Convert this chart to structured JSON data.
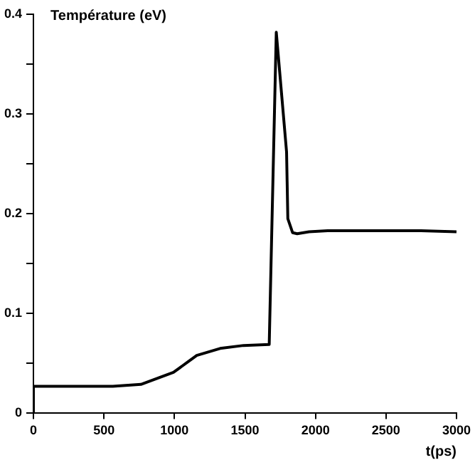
{
  "chart_data": {
    "type": "line",
    "xlabel": "t(ps)",
    "ylabel": "Température (eV)",
    "series": [
      {
        "color": "#000000",
        "x": [
          0,
          0,
          563,
          762,
          993,
          1158,
          1324,
          1490,
          1672,
          1722,
          1795,
          1804,
          1838,
          1870,
          1954,
          2086,
          2748,
          3000
        ],
        "values": [
          0,
          0.027,
          0.027,
          0.029,
          0.041,
          0.058,
          0.065,
          0.068,
          0.069,
          0.382,
          0.262,
          0.195,
          0.181,
          0.18,
          0.182,
          0.183,
          0.183,
          0.182
        ]
      }
    ],
    "xlim": [
      0,
      3000
    ],
    "xticks": [
      0,
      500,
      1000,
      1500,
      2000,
      2500,
      3000
    ],
    "ylim": [
      0,
      0.4
    ],
    "yticks": [
      0,
      {
        "value": 0.05,
        "label": null
      },
      0.1,
      {
        "value": 0.15,
        "label": null
      },
      0.2,
      {
        "value": 0.25,
        "label": null
      },
      0.3,
      {
        "value": 0.35,
        "label": null
      },
      0.4
    ],
    "grid": false,
    "legend": false,
    "marker": "none",
    "line_style": "solid"
  }
}
